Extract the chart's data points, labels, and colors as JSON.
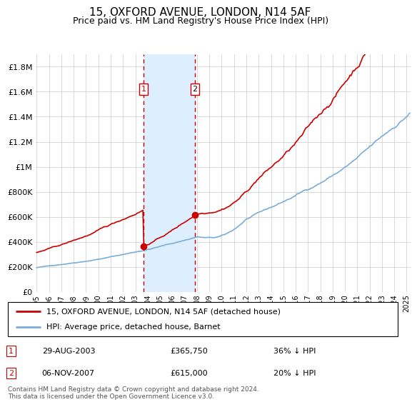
{
  "title": "15, OXFORD AVENUE, LONDON, N14 5AF",
  "subtitle": "Price paid vs. HM Land Registry's House Price Index (HPI)",
  "legend_line1": "15, OXFORD AVENUE, LONDON, N14 5AF (detached house)",
  "legend_line2": "HPI: Average price, detached house, Barnet",
  "footer": "Contains HM Land Registry data © Crown copyright and database right 2024.\nThis data is licensed under the Open Government Licence v3.0.",
  "table": [
    {
      "num": "1",
      "date": "29-AUG-2003",
      "price": "£365,750",
      "hpi": "36% ↓ HPI"
    },
    {
      "num": "2",
      "date": "06-NOV-2007",
      "price": "£615,000",
      "hpi": "20% ↓ HPI"
    }
  ],
  "marker1_x": 2003.66,
  "marker1_y": 365750,
  "marker2_x": 2007.84,
  "marker2_y": 615000,
  "vline1_x": 2003.66,
  "vline2_x": 2007.84,
  "shade_color": "#ddeeff",
  "red_color": "#cc0000",
  "blue_color": "#7aadda",
  "ylim_max": 1900000,
  "xlim_start": 1994.9,
  "xlim_end": 2025.3,
  "yticks": [
    0,
    200000,
    400000,
    600000,
    800000,
    1000000,
    1200000,
    1400000,
    1600000,
    1800000
  ],
  "ytick_labels": [
    "£0",
    "£200K",
    "£400K",
    "£600K",
    "£800K",
    "£1M",
    "£1.2M",
    "£1.4M",
    "£1.6M",
    "£1.8M"
  ],
  "background_color": "#ffffff",
  "grid_color": "#cccccc"
}
